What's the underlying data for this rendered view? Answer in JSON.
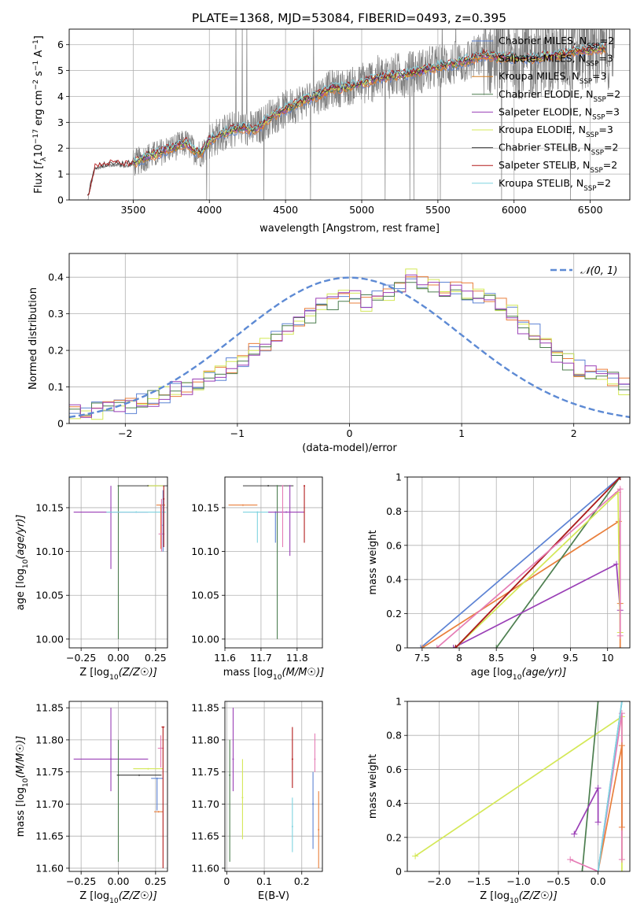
{
  "figure": {
    "title": "PLATE=1368, MJD=53084, FIBERID=0493, z=0.395"
  },
  "colors": {
    "chabrier_miles": "#5d83d4",
    "salpeter_miles": "#e97f3c",
    "kroupa_miles": "#d47f22",
    "chabrier_elodie": "#4c7e4f",
    "salpeter_elodie": "#9a3fb6",
    "kroupa_elodie": "#d4e857",
    "chabrier_stelib": "#3a3a3a",
    "salpeter_stelib": "#b31b1b",
    "kroupa_stelib": "#7fd3e0",
    "pink": "#e57cb5",
    "data_grey": "#7f7f7f",
    "gaussian": "#5d8ad4",
    "grid": "#b0b0b0"
  },
  "chart_data": [
    {
      "id": "spectrum",
      "type": "line",
      "xlabel": "wavelength [Angstrom, rest frame]",
      "ylabel": "Flux [f_λ 10^-17 erg cm^-2 s^-1 A^-1]",
      "xlim": [
        3080,
        6760
      ],
      "ylim": [
        0,
        6.6
      ],
      "xticks": [
        3500,
        4000,
        4500,
        5000,
        5500,
        6000,
        6500
      ],
      "yticks": [
        0,
        1,
        2,
        3,
        4,
        5,
        6
      ],
      "grid": true,
      "legend_position": "upper right",
      "legend": [
        {
          "label": "Chabrier MILES, N",
          "sub": "SSP",
          "suffix": "=2",
          "color_key": "chabrier_miles"
        },
        {
          "label": "Salpeter MILES, N",
          "sub": "SSP",
          "suffix": "=3",
          "color_key": "salpeter_miles"
        },
        {
          "label": "Kroupa MILES, N",
          "sub": "SSP",
          "suffix": "=3",
          "color_key": "kroupa_miles"
        },
        {
          "label": "Chabrier ELODIE, N",
          "sub": "SSP",
          "suffix": "=2",
          "color_key": "chabrier_elodie"
        },
        {
          "label": "Salpeter ELODIE, N",
          "sub": "SSP",
          "suffix": "=3",
          "color_key": "salpeter_elodie"
        },
        {
          "label": "Kroupa ELODIE, N",
          "sub": "SSP",
          "suffix": "=3",
          "color_key": "kroupa_elodie"
        },
        {
          "label": "Chabrier STELIB, N",
          "sub": "SSP",
          "suffix": "=2",
          "color_key": "chabrier_stelib"
        },
        {
          "label": "Salpeter STELIB, N",
          "sub": "SSP",
          "suffix": "=2",
          "color_key": "salpeter_stelib"
        },
        {
          "label": "Kroupa STELIB, N",
          "sub": "SSP",
          "suffix": "=2",
          "color_key": "kroupa_stelib"
        }
      ],
      "model_envelope": {
        "x": [
          3200,
          3250,
          3300,
          3350,
          3400,
          3450,
          3500,
          3550,
          3600,
          3650,
          3700,
          3750,
          3800,
          3850,
          3900,
          3950,
          4000,
          4100,
          4200,
          4300,
          4400,
          4500,
          4600,
          4700,
          4800,
          4900,
          5000,
          5100,
          5200,
          5300,
          5400,
          5500,
          5600,
          5700,
          5800,
          5900,
          6000,
          6100,
          6200,
          6300,
          6400,
          6500,
          6600
        ],
        "y": [
          0.0,
          1.2,
          1.3,
          1.35,
          1.35,
          1.3,
          1.4,
          1.55,
          1.7,
          1.75,
          1.9,
          2.0,
          2.1,
          2.2,
          1.9,
          1.8,
          2.3,
          2.6,
          2.8,
          2.7,
          3.2,
          3.5,
          3.8,
          4.0,
          4.3,
          4.35,
          4.5,
          4.7,
          4.8,
          4.85,
          5.0,
          5.15,
          5.25,
          5.4,
          5.6,
          5.5,
          5.5,
          5.45,
          5.55,
          5.6,
          5.75,
          5.8,
          5.85
        ]
      }
    },
    {
      "id": "residuals",
      "type": "step",
      "xlabel": "(data-model)/error",
      "ylabel": "Normed distribution",
      "xlim": [
        -2.5,
        2.5
      ],
      "ylim": [
        0,
        0.465
      ],
      "xticks": [
        -2,
        -1,
        0,
        1,
        2
      ],
      "yticks": [
        0.0,
        0.1,
        0.2,
        0.3,
        0.4
      ],
      "grid": true,
      "legend_position": "upper right",
      "gaussian_label": "𝒩(0, 1)",
      "bin_width": 0.1,
      "bin_start": -2.5,
      "hist_base": [
        0.03,
        0.03,
        0.035,
        0.04,
        0.045,
        0.05,
        0.06,
        0.07,
        0.08,
        0.09,
        0.1,
        0.11,
        0.125,
        0.14,
        0.16,
        0.18,
        0.2,
        0.22,
        0.24,
        0.26,
        0.28,
        0.3,
        0.32,
        0.33,
        0.34,
        0.35,
        0.33,
        0.34,
        0.36,
        0.38,
        0.41,
        0.39,
        0.38,
        0.37,
        0.37,
        0.36,
        0.35,
        0.34,
        0.33,
        0.3,
        0.27,
        0.25,
        0.22,
        0.19,
        0.17,
        0.15,
        0.14,
        0.13,
        0.12,
        0.1,
        0.09,
        0.08,
        0.07,
        0.065,
        0.06,
        0.06,
        0.05,
        0.05,
        0.055,
        0.06,
        0.05
      ]
    },
    {
      "id": "age_vs_Z",
      "type": "errorbar",
      "xlabel": "Z [log10(Z/Z☉)]",
      "ylabel": "age  [log10(age/yr)]",
      "xlim": [
        -0.33,
        0.33
      ],
      "ylim": [
        9.99,
        10.185
      ],
      "xticks": [
        -0.25,
        0.0,
        0.25
      ],
      "xticklabels": [
        "−0.25",
        "0.00",
        "0.25"
      ],
      "yticks": [
        10.0,
        10.05,
        10.1,
        10.15
      ],
      "yticklabels": [
        "10.00",
        "10.05",
        "10.10",
        "10.15"
      ],
      "grid": true,
      "points": [
        {
          "x": -0.05,
          "y": 10.145,
          "xerr": 0.25,
          "yerr": [
            0.065,
            0.03
          ],
          "color_key": "salpeter_elodie"
        },
        {
          "x": 0.0,
          "y": 10.175,
          "xerr": 0.0,
          "yerr": [
            0.175,
            0.0
          ],
          "color_key": "chabrier_elodie"
        },
        {
          "x": 0.12,
          "y": 10.145,
          "xerr": 0.2,
          "yerr": [
            0.0,
            0.0
          ],
          "color_key": "kroupa_stelib"
        },
        {
          "x": 0.2,
          "y": 10.175,
          "xerr": 0.2,
          "yerr": [
            0.0,
            0.0
          ],
          "color_key": "chabrier_stelib"
        },
        {
          "x": 0.25,
          "y": 10.175,
          "xerr": 0.05,
          "yerr": [
            0.0,
            0.0
          ],
          "color_key": "kroupa_elodie"
        },
        {
          "x": 0.285,
          "y": 10.153,
          "xerr": 0.03,
          "yerr": [
            0.05,
            0.0
          ],
          "color_key": "salpeter_miles"
        },
        {
          "x": 0.29,
          "y": 10.12,
          "xerr": 0.02,
          "yerr": [
            0.02,
            0.04
          ],
          "color_key": "pink"
        },
        {
          "x": 0.3,
          "y": 10.13,
          "xerr": 0.0,
          "yerr": [
            0.03,
            0.04
          ],
          "color_key": "chabrier_miles"
        },
        {
          "x": 0.305,
          "y": 10.16,
          "xerr": 0.0,
          "yerr": [
            0.055,
            0.015
          ],
          "color_key": "salpeter_stelib"
        }
      ]
    },
    {
      "id": "age_vs_mass",
      "type": "errorbar",
      "xlabel": "mass [log10(M/M☉)]",
      "ylabel": "",
      "xlim": [
        11.6,
        11.87
      ],
      "ylim": [
        9.99,
        10.185
      ],
      "xticks": [
        11.6,
        11.7,
        11.8
      ],
      "yticks": [
        10.0,
        10.05,
        10.1,
        10.15
      ],
      "yticklabels": [
        "10.00",
        "10.05",
        "10.10",
        "10.15"
      ],
      "grid": true,
      "points": [
        {
          "x": 11.65,
          "y": 10.153,
          "xerr": 0.04,
          "yerr": [
            0.0,
            0.0
          ],
          "color_key": "salpeter_miles"
        },
        {
          "x": 11.69,
          "y": 10.145,
          "xerr": 0.04,
          "yerr": [
            0.035,
            0.0
          ],
          "color_key": "kroupa_stelib"
        },
        {
          "x": 11.72,
          "y": 10.175,
          "xerr": 0.07,
          "yerr": [
            0.0,
            0.0
          ],
          "color_key": "chabrier_stelib"
        },
        {
          "x": 11.745,
          "y": 10.175,
          "xerr": 0.0,
          "yerr": [
            0.175,
            0.0
          ],
          "color_key": "chabrier_elodie"
        },
        {
          "x": 11.74,
          "y": 10.145,
          "xerr": 0.0,
          "yerr": [
            0.035,
            0.0
          ],
          "color_key": "chabrier_miles"
        },
        {
          "x": 11.77,
          "y": 10.145,
          "xerr": 0.05,
          "yerr": [
            0.0,
            0.0
          ],
          "color_key": "salpeter_elodie"
        },
        {
          "x": 11.76,
          "y": 10.175,
          "xerr": 0.0,
          "yerr": [
            0.07,
            0.0
          ],
          "color_key": "pink"
        },
        {
          "x": 11.78,
          "y": 10.175,
          "xerr": 0.0,
          "yerr": [
            0.08,
            0.0
          ],
          "color_key": "salpeter_elodie"
        },
        {
          "x": 11.82,
          "y": 10.175,
          "xerr": 0.0,
          "yerr": [
            0.065,
            0.0
          ],
          "color_key": "salpeter_stelib"
        }
      ]
    },
    {
      "id": "massweight_vs_age",
      "type": "line",
      "xlabel": "age  [log10(age/yr)]",
      "ylabel": "mass weight",
      "xlim": [
        7.3,
        10.3
      ],
      "ylim": [
        0,
        1.0
      ],
      "xticks": [
        7.5,
        8.0,
        8.5,
        9.0,
        9.5,
        10.0
      ],
      "yticks": [
        0.0,
        0.2,
        0.4,
        0.6,
        0.8,
        1.0
      ],
      "grid": true,
      "series": [
        {
          "color_key": "chabrier_miles",
          "x": [
            7.48,
            10.17
          ],
          "y": [
            0.0,
            1.0
          ]
        },
        {
          "color_key": "salpeter_miles",
          "x": [
            7.5,
            10.15,
            10.17,
            10.17
          ],
          "y": [
            0.0,
            0.74,
            0.26,
            0.0
          ]
        },
        {
          "color_key": "chabrier_elodie",
          "x": [
            8.5,
            10.17
          ],
          "y": [
            0.0,
            1.0
          ]
        },
        {
          "color_key": "salpeter_elodie",
          "x": [
            7.92,
            10.12,
            10.17
          ],
          "y": [
            0.0,
            0.49,
            0.22
          ]
        },
        {
          "color_key": "kroupa_elodie",
          "x": [
            7.95,
            10.14,
            10.17
          ],
          "y": [
            0.0,
            0.91,
            0.09
          ]
        },
        {
          "color_key": "chabrier_stelib",
          "x": [
            7.95,
            10.17
          ],
          "y": [
            0.0,
            1.0
          ]
        },
        {
          "color_key": "salpeter_stelib",
          "x": [
            7.95,
            10.17
          ],
          "y": [
            0.0,
            1.0
          ]
        },
        {
          "color_key": "pink",
          "x": [
            7.7,
            10.17,
            10.17
          ],
          "y": [
            0.0,
            0.93,
            0.07
          ]
        }
      ]
    },
    {
      "id": "mass_vs_Z",
      "type": "errorbar",
      "xlabel": "Z [log10(Z/Z☉)]",
      "ylabel": "mass [log10(M/M☉)]",
      "xlim": [
        -0.33,
        0.33
      ],
      "ylim": [
        11.595,
        11.86
      ],
      "xticks": [
        -0.25,
        0.0,
        0.25
      ],
      "xticklabels": [
        "−0.25",
        "0.00",
        "0.25"
      ],
      "yticks": [
        11.6,
        11.65,
        11.7,
        11.75,
        11.8,
        11.85
      ],
      "yticklabels": [
        "11.60",
        "11.65",
        "11.70",
        "11.75",
        "11.80",
        "11.85"
      ],
      "grid": true,
      "points": [
        {
          "x": -0.05,
          "y": 11.77,
          "xerr": 0.25,
          "yerr": [
            0.05,
            0.08
          ],
          "color_key": "salpeter_elodie"
        },
        {
          "x": 0.0,
          "y": 11.745,
          "xerr": 0.0,
          "yerr": [
            0.135,
            0.055
          ],
          "color_key": "chabrier_elodie"
        },
        {
          "x": 0.14,
          "y": 11.745,
          "xerr": 0.15,
          "yerr": [
            0.0,
            0.0
          ],
          "color_key": "chabrier_stelib"
        },
        {
          "x": 0.2,
          "y": 11.755,
          "xerr": 0.1,
          "yerr": [
            0.0,
            0.0
          ],
          "color_key": "kroupa_elodie"
        },
        {
          "x": 0.26,
          "y": 11.74,
          "xerr": 0.04,
          "yerr": [
            0.05,
            0.0
          ],
          "color_key": "chabrier_miles"
        },
        {
          "x": 0.27,
          "y": 11.688,
          "xerr": 0.03,
          "yerr": [
            0.0,
            0.0
          ],
          "color_key": "salpeter_miles"
        },
        {
          "x": 0.285,
          "y": 11.787,
          "xerr": 0.02,
          "yerr": [
            0.03,
            0.02
          ],
          "color_key": "pink"
        },
        {
          "x": 0.3,
          "y": 11.82,
          "xerr": 0.01,
          "yerr": [
            0.22,
            0.0
          ],
          "color_key": "salpeter_stelib"
        }
      ]
    },
    {
      "id": "mass_vs_ebv",
      "type": "errorbar",
      "xlabel": "E(B-V)",
      "ylabel": "",
      "xlim": [
        -0.005,
        0.255
      ],
      "ylim": [
        11.595,
        11.86
      ],
      "xticks": [
        0.0,
        0.1,
        0.2
      ],
      "yticks": [
        11.6,
        11.65,
        11.7,
        11.75,
        11.8,
        11.85
      ],
      "yticklabels": [
        "11.60",
        "11.65",
        "11.70",
        "11.75",
        "11.80",
        "11.85"
      ],
      "grid": true,
      "points": [
        {
          "x": 0.008,
          "y": 11.745,
          "xerr": 0.0,
          "yerr": [
            0.135,
            0.055
          ],
          "color_key": "chabrier_elodie"
        },
        {
          "x": 0.017,
          "y": 11.77,
          "xerr": 0.0,
          "yerr": [
            0.05,
            0.08
          ],
          "color_key": "salpeter_elodie"
        },
        {
          "x": 0.042,
          "y": 11.71,
          "xerr": 0.0,
          "yerr": [
            0.065,
            0.06
          ],
          "color_key": "kroupa_elodie"
        },
        {
          "x": 0.175,
          "y": 11.77,
          "xerr": 0.0,
          "yerr": [
            0.045,
            0.05
          ],
          "color_key": "salpeter_stelib"
        },
        {
          "x": 0.175,
          "y": 11.665,
          "xerr": 0.0,
          "yerr": [
            0.04,
            0.045
          ],
          "color_key": "kroupa_stelib"
        },
        {
          "x": 0.23,
          "y": 11.7,
          "xerr": 0.0,
          "yerr": [
            0.07,
            0.05
          ],
          "color_key": "chabrier_miles"
        },
        {
          "x": 0.235,
          "y": 11.77,
          "xerr": 0.0,
          "yerr": [
            0.02,
            0.04
          ],
          "color_key": "pink"
        },
        {
          "x": 0.245,
          "y": 11.66,
          "xerr": 0.0,
          "yerr": [
            0.06,
            0.06
          ],
          "color_key": "salpeter_miles"
        }
      ]
    },
    {
      "id": "massweight_vs_Z",
      "type": "line",
      "xlabel": "Z [log10(Z/Z☉)]",
      "ylabel": "mass weight",
      "xlim": [
        -2.4,
        0.4
      ],
      "ylim": [
        0,
        1.0
      ],
      "xticks": [
        -2.0,
        -1.5,
        -1.0,
        -0.5,
        0.0
      ],
      "xticklabels": [
        "−2.0",
        "−1.5",
        "−1.0",
        "−0.5",
        "0.0"
      ],
      "yticks": [
        0.0,
        0.2,
        0.4,
        0.6,
        0.8,
        1.0
      ],
      "grid": true,
      "series": [
        {
          "color_key": "kroupa_elodie",
          "x": [
            -2.3,
            0.3,
            0.3
          ],
          "y": [
            0.09,
            0.91,
            0.0
          ]
        },
        {
          "color_key": "chabrier_elodie",
          "x": [
            -0.2,
            0.0
          ],
          "y": [
            0.0,
            1.0
          ]
        },
        {
          "color_key": "salpeter_elodie",
          "x": [
            -0.3,
            0.0,
            0.0
          ],
          "y": [
            0.22,
            0.49,
            0.29
          ]
        },
        {
          "color_key": "pink",
          "x": [
            -0.35,
            0.0,
            0.3,
            0.3
          ],
          "y": [
            0.07,
            0.0,
            0.93,
            0.07
          ]
        },
        {
          "color_key": "salpeter_miles",
          "x": [
            0.0,
            0.3,
            0.3
          ],
          "y": [
            0.0,
            0.74,
            0.26
          ]
        },
        {
          "color_key": "chabrier_miles",
          "x": [
            0.0,
            0.3
          ],
          "y": [
            0.0,
            1.0
          ]
        },
        {
          "color_key": "kroupa_stelib",
          "x": [
            0.0,
            0.3
          ],
          "y": [
            0.0,
            1.0
          ]
        }
      ]
    }
  ]
}
